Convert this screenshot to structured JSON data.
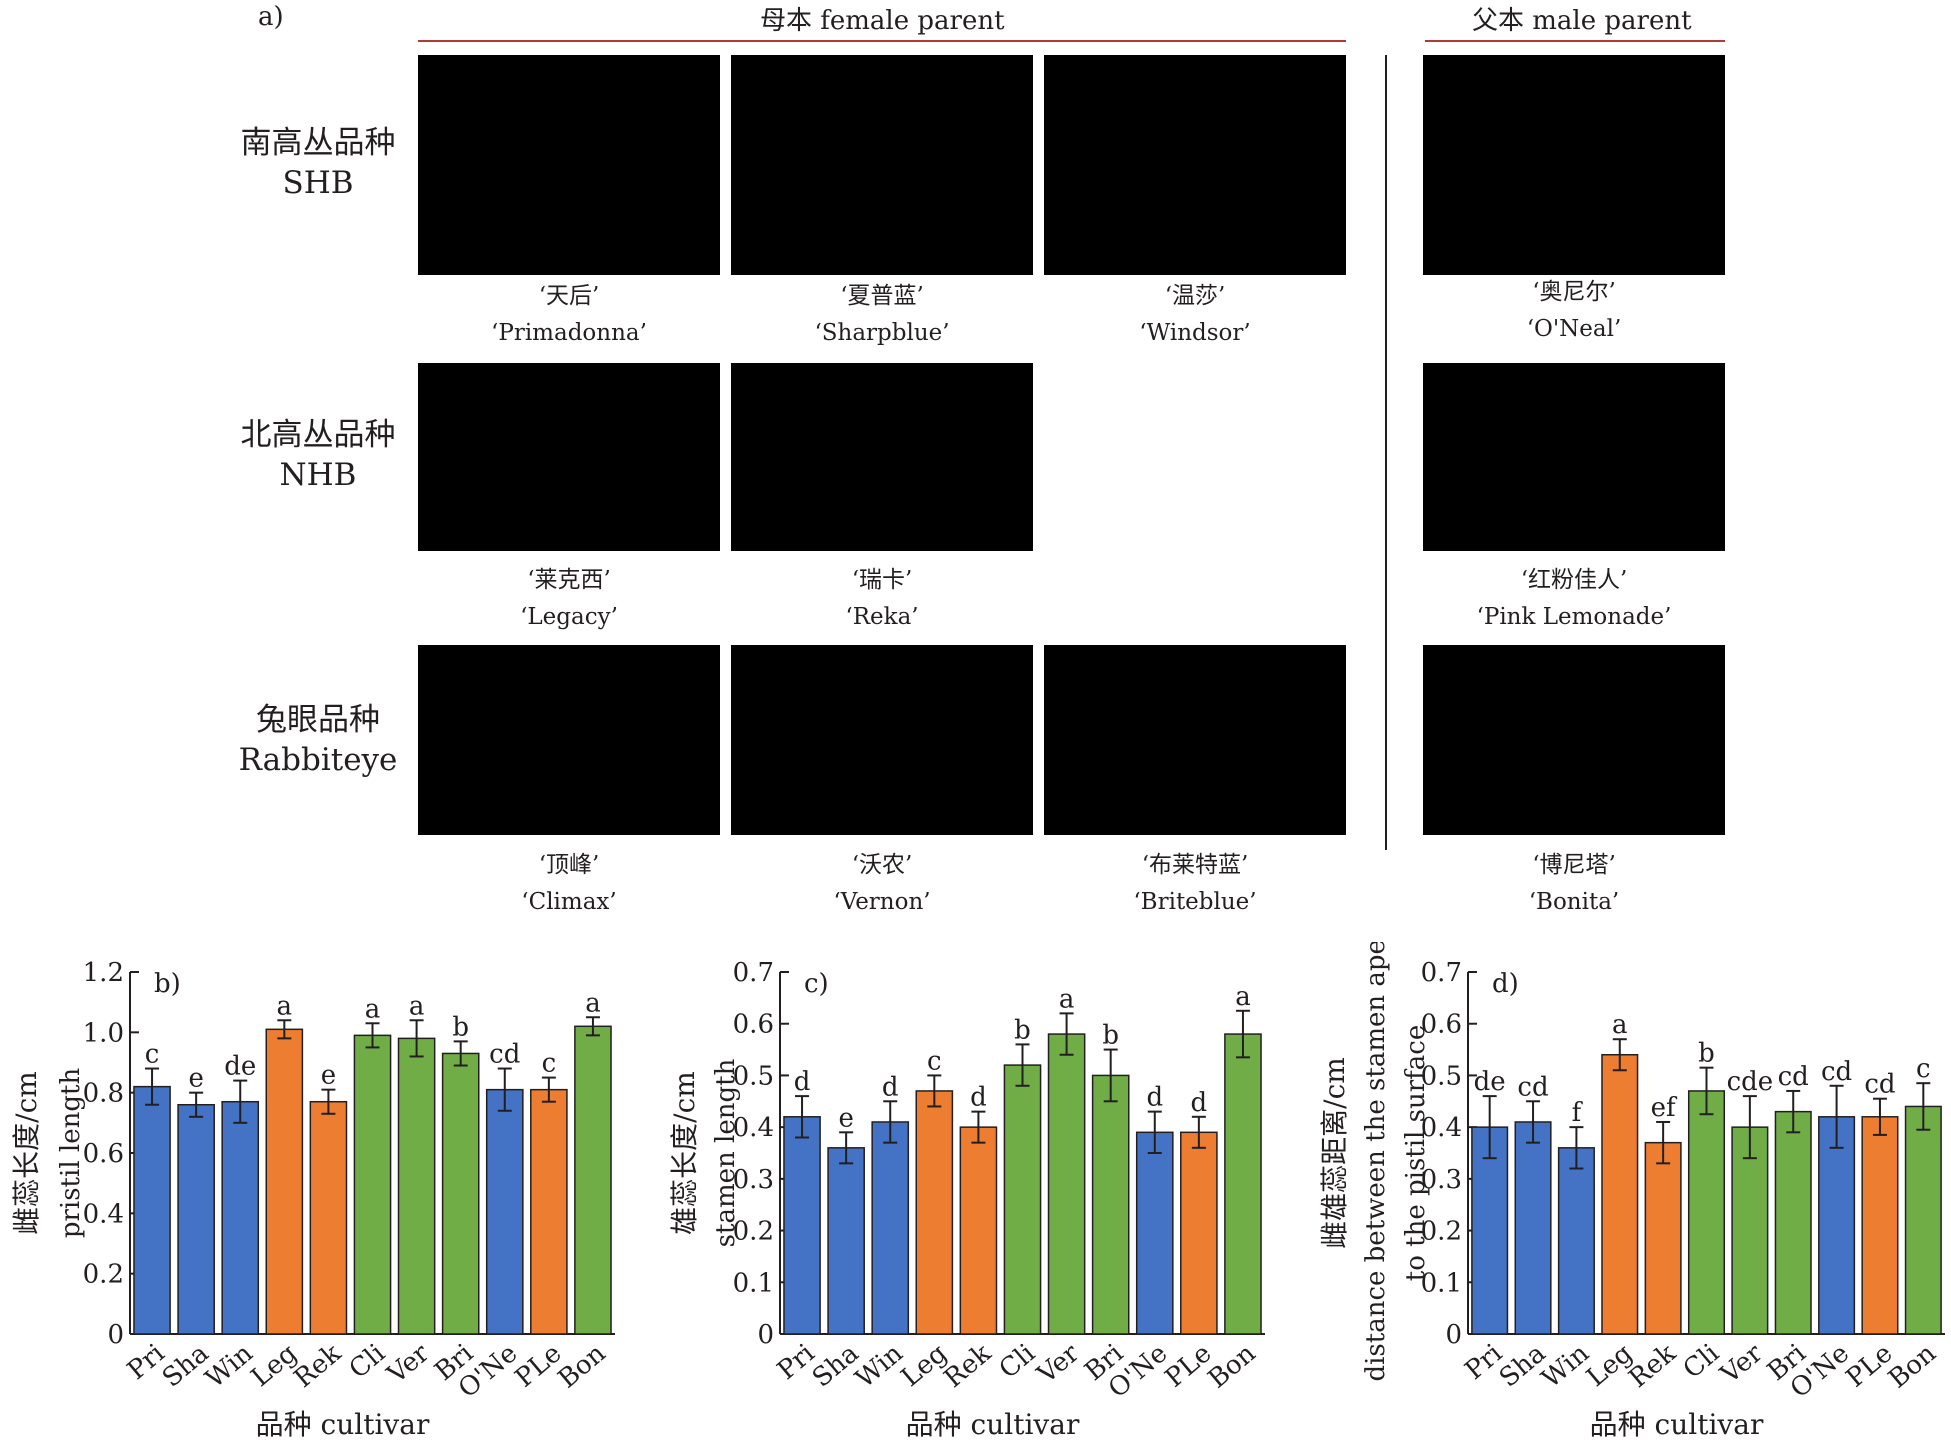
{
  "panel_a": {
    "letter": "a)",
    "female_header": "母本 female parent",
    "male_header": "父本 male parent",
    "rows": [
      {
        "label_cn": "南高丛品种",
        "label_en": "SHB",
        "female": [
          {
            "cn": "‘天后’",
            "en": "‘Primadonna’"
          },
          {
            "cn": "‘夏普蓝’",
            "en": "‘Sharpblue’"
          },
          {
            "cn": "‘温莎’",
            "en": "‘Windsor’"
          }
        ],
        "male": {
          "cn": "‘奥尼尔’",
          "en": "‘O'Neal’"
        }
      },
      {
        "label_cn": "北高丛品种",
        "label_en": "NHB",
        "female": [
          {
            "cn": "‘莱克西’",
            "en": "‘Legacy’"
          },
          {
            "cn": "‘瑞卡’",
            "en": "‘Reka’"
          }
        ],
        "male": {
          "cn": "‘红粉佳人’",
          "en": "‘Pink Lemonade’"
        }
      },
      {
        "label_cn": "兔眼品种",
        "label_en": "Rabbiteye",
        "female": [
          {
            "cn": "‘顶峰’",
            "en": "‘Climax’"
          },
          {
            "cn": "‘沃农’",
            "en": "‘Vernon’"
          },
          {
            "cn": "‘布莱特蓝’",
            "en": "‘Briteblue’"
          }
        ],
        "male": {
          "cn": "‘博尼塔’",
          "en": "‘Bonita’"
        }
      }
    ]
  },
  "colors": {
    "SHB": "#4472c4",
    "NHB": "#ed7d31",
    "Rabbiteye": "#70ad47"
  },
  "chart_data": [
    {
      "type": "bar",
      "panel": "b)",
      "categories": [
        "Pri",
        "Sha",
        "Win",
        "Leg",
        "Rek",
        "Cli",
        "Ver",
        "Bri",
        "O'Ne",
        "PLe",
        "Bon"
      ],
      "values": [
        0.82,
        0.76,
        0.77,
        1.01,
        0.77,
        0.99,
        0.98,
        0.93,
        0.81,
        0.81,
        1.02
      ],
      "errors": [
        0.06,
        0.04,
        0.07,
        0.03,
        0.04,
        0.04,
        0.06,
        0.04,
        0.07,
        0.04,
        0.03
      ],
      "letters": [
        "c",
        "e",
        "de",
        "a",
        "e",
        "a",
        "a",
        "b",
        "cd",
        "c",
        "a"
      ],
      "groups": [
        "SHB",
        "SHB",
        "SHB",
        "NHB",
        "NHB",
        "Rabbiteye",
        "Rabbiteye",
        "Rabbiteye",
        "SHB",
        "NHB",
        "Rabbiteye"
      ],
      "ylabel_cn": "雌蕊长度/cm",
      "ylabel_en": [
        "pristil length"
      ],
      "xlabel": "品种 cultivar",
      "ylim": [
        0,
        1.2
      ],
      "yticks": [
        "0",
        "0.2",
        "0.4",
        "0.6",
        "0.8",
        "1.0",
        "1.2"
      ]
    },
    {
      "type": "bar",
      "panel": "c)",
      "categories": [
        "Pri",
        "Sha",
        "Win",
        "Leg",
        "Rek",
        "Cli",
        "Ver",
        "Bri",
        "O'Ne",
        "PLe",
        "Bon"
      ],
      "values": [
        0.42,
        0.36,
        0.41,
        0.47,
        0.4,
        0.52,
        0.58,
        0.5,
        0.39,
        0.39,
        0.58
      ],
      "errors": [
        0.04,
        0.03,
        0.04,
        0.03,
        0.03,
        0.04,
        0.04,
        0.05,
        0.04,
        0.03,
        0.045
      ],
      "letters": [
        "d",
        "e",
        "d",
        "c",
        "d",
        "b",
        "a",
        "b",
        "d",
        "d",
        "a"
      ],
      "groups": [
        "SHB",
        "SHB",
        "SHB",
        "NHB",
        "NHB",
        "Rabbiteye",
        "Rabbiteye",
        "Rabbiteye",
        "SHB",
        "NHB",
        "Rabbiteye"
      ],
      "ylabel_cn": "雄蕊长度/cm",
      "ylabel_en": [
        "stamen length"
      ],
      "xlabel": "品种 cultivar",
      "ylim": [
        0,
        0.7
      ],
      "yticks": [
        "0",
        "0.1",
        "0.2",
        "0.3",
        "0.4",
        "0.5",
        "0.6",
        "0.7"
      ]
    },
    {
      "type": "bar",
      "panel": "d)",
      "categories": [
        "Pri",
        "Sha",
        "Win",
        "Leg",
        "Rek",
        "Cli",
        "Ver",
        "Bri",
        "O'Ne",
        "PLe",
        "Bon"
      ],
      "values": [
        0.4,
        0.41,
        0.36,
        0.54,
        0.37,
        0.47,
        0.4,
        0.43,
        0.42,
        0.42,
        0.44
      ],
      "errors": [
        0.06,
        0.04,
        0.04,
        0.03,
        0.04,
        0.045,
        0.06,
        0.04,
        0.06,
        0.035,
        0.045
      ],
      "letters": [
        "de",
        "cd",
        "f",
        "a",
        "ef",
        "b",
        "cde",
        "cd",
        "cd",
        "cd",
        "c"
      ],
      "groups": [
        "SHB",
        "SHB",
        "SHB",
        "NHB",
        "NHB",
        "Rabbiteye",
        "Rabbiteye",
        "Rabbiteye",
        "SHB",
        "NHB",
        "Rabbiteye"
      ],
      "ylabel_cn": "雌雄蕊距离/cm",
      "ylabel_en": [
        "distance between the stamen apex",
        "to the pistil surface"
      ],
      "xlabel": "品种 cultivar",
      "ylim": [
        0,
        0.7
      ],
      "yticks": [
        "0",
        "0.1",
        "0.2",
        "0.3",
        "0.4",
        "0.5",
        "0.6",
        "0.7"
      ]
    }
  ]
}
